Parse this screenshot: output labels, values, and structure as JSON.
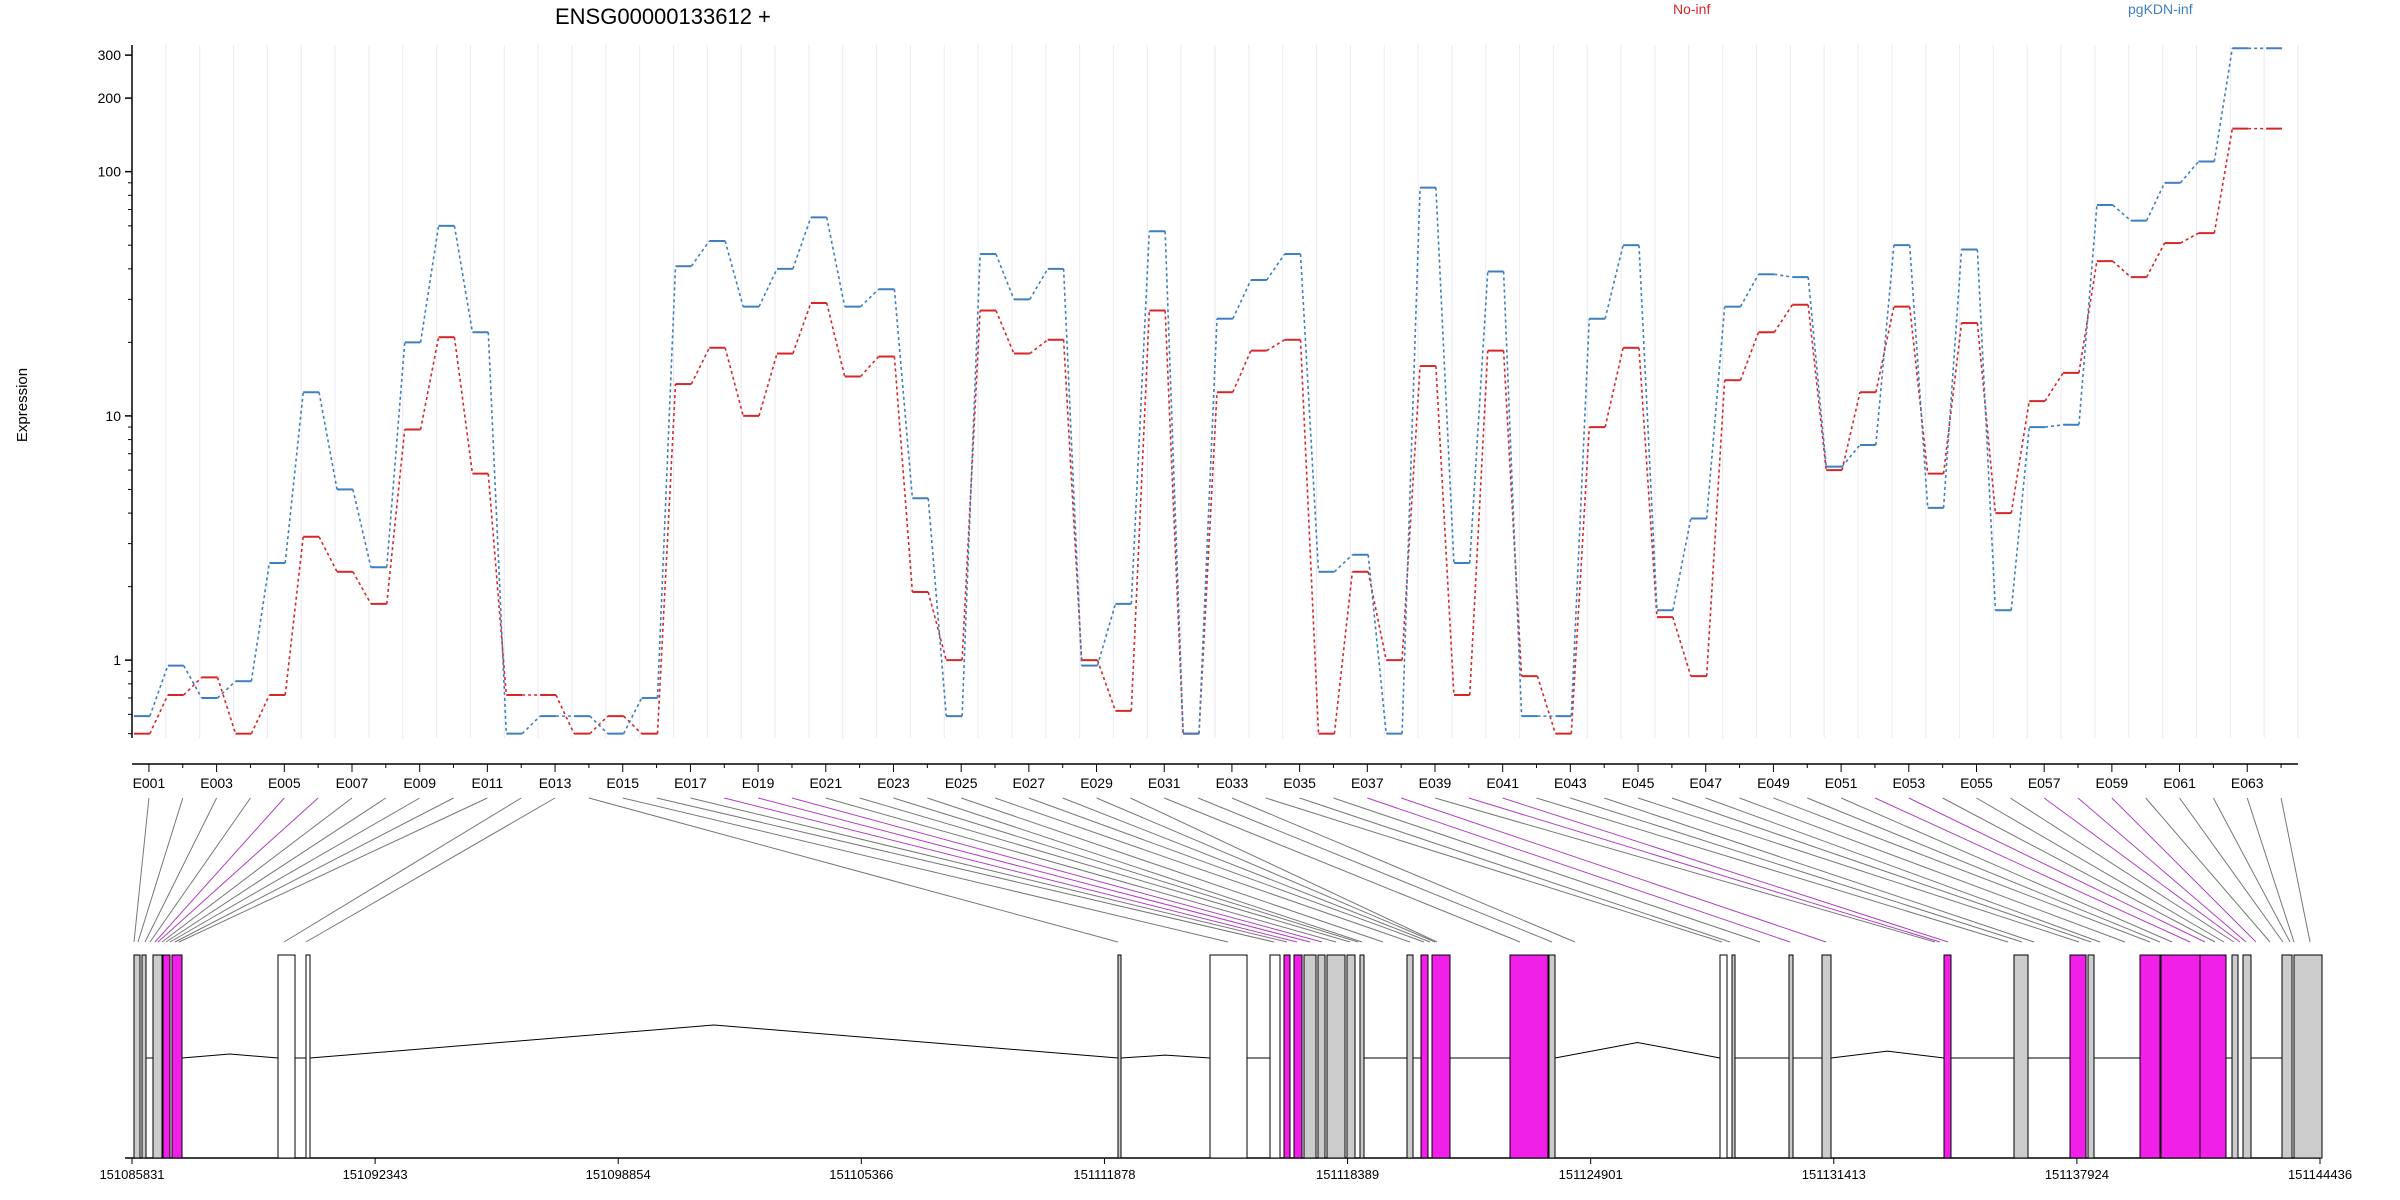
{
  "chart_data": {
    "type": "line",
    "title": "ENSG00000133612 +",
    "ylabel": "Expression",
    "yscale": "log",
    "ylim": [
      0.48,
      330
    ],
    "yticks": [
      1,
      10,
      100,
      200,
      300
    ],
    "ytick_labels": [
      "1",
      "10",
      "100",
      "200",
      "300"
    ],
    "xtick_labels": [
      "E001",
      "E003",
      "E005",
      "E007",
      "E009",
      "E011",
      "E013",
      "E015",
      "E017",
      "E019",
      "E021",
      "E023",
      "E025",
      "E027",
      "E029",
      "E031",
      "E033",
      "E035",
      "E037",
      "E039",
      "E041",
      "E043",
      "E045",
      "E047",
      "E049",
      "E051",
      "E053",
      "E055",
      "E057",
      "E059",
      "E061",
      "E063"
    ],
    "categories": [
      "E001",
      "E002",
      "E003",
      "E004",
      "E005",
      "E006",
      "E007",
      "E008",
      "E009",
      "E010",
      "E011",
      "E012",
      "E013",
      "E014",
      "E015",
      "E016",
      "E017",
      "E018",
      "E019",
      "E020",
      "E021",
      "E022",
      "E023",
      "E024",
      "E025",
      "E026",
      "E027",
      "E028",
      "E029",
      "E030",
      "E031",
      "E032",
      "E033",
      "E034",
      "E035",
      "E036",
      "E037",
      "E038",
      "E039",
      "E040",
      "E041",
      "E042",
      "E043",
      "E044",
      "E045",
      "E046",
      "E047",
      "E048",
      "E049",
      "E050",
      "E051",
      "E052",
      "E053",
      "E054",
      "E055",
      "E056",
      "E057",
      "E058",
      "E059",
      "E060",
      "E061",
      "E062",
      "E063",
      "E064"
    ],
    "series": [
      {
        "name": "No-inf",
        "color": "#d62728",
        "values": [
          0.5,
          0.72,
          0.85,
          0.5,
          0.72,
          3.2,
          2.3,
          1.7,
          8.8,
          21,
          5.8,
          0.72,
          0.72,
          0.5,
          0.59,
          0.5,
          13.5,
          19,
          10,
          18,
          29,
          14.5,
          17.5,
          1.9,
          1.0,
          27,
          18,
          20.5,
          1.0,
          0.62,
          27,
          0.5,
          12.5,
          18.5,
          20.5,
          0.5,
          2.3,
          1.0,
          16,
          0.72,
          18.5,
          0.86,
          0.5,
          9.0,
          19,
          1.5,
          0.86,
          14,
          22,
          28.5,
          6.0,
          12.5,
          28,
          5.8,
          24,
          4.0,
          11.5,
          15,
          43,
          37,
          51,
          56,
          150,
          150
        ]
      },
      {
        "name": "pgKDN-inf",
        "color": "#3f7fbf",
        "values": [
          0.59,
          0.95,
          0.7,
          0.82,
          2.5,
          12.5,
          5.0,
          2.4,
          20,
          60,
          22,
          0.5,
          0.59,
          0.59,
          0.5,
          0.7,
          41,
          52,
          28,
          40,
          65,
          28,
          33,
          4.6,
          0.59,
          46,
          30,
          40,
          0.95,
          1.7,
          57,
          0.5,
          25,
          36,
          46,
          2.3,
          2.7,
          0.5,
          86,
          2.5,
          39,
          0.59,
          0.59,
          25,
          50,
          1.6,
          3.8,
          28,
          38,
          37,
          6.2,
          7.6,
          50,
          4.2,
          48,
          1.6,
          9.0,
          9.2,
          73,
          63,
          90,
          110,
          320,
          320
        ]
      }
    ],
    "gene_model": {
      "xtick_labels": [
        "151085831",
        "151092343",
        "151098854",
        "151105366",
        "151111878",
        "151118389",
        "151124901",
        "151131413",
        "151137924",
        "151144436"
      ],
      "exon_colors": {
        "unexpressed": "#ffffff",
        "expressed": "#cccccc",
        "highlight": "#f020e8"
      }
    },
    "legend": {
      "placement": "top-right",
      "entries": [
        "No-inf",
        "pgKDN-inf"
      ]
    }
  }
}
